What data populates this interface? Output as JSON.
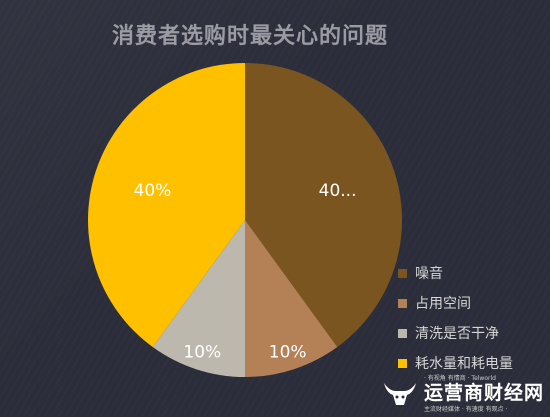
{
  "chart_data": {
    "type": "pie",
    "title": "消费者选购时最关心的问题",
    "slices": [
      {
        "label": "噪音",
        "value": 40,
        "display": "40...",
        "color": "#7a5520"
      },
      {
        "label": "占用空间",
        "value": 10,
        "display": "10%",
        "color": "#b48055"
      },
      {
        "label": "清洗是否干净",
        "value": 10,
        "display": "10%",
        "color": "#bdb8ad"
      },
      {
        "label": "耗水量和耗电量",
        "value": 40,
        "display": "40%",
        "color": "#ffc000"
      }
    ],
    "legend_position": "bottom-right"
  },
  "watermark": {
    "slogan": "· 有视角 有情商 · Telworld",
    "name": "运营商财经网",
    "sub": "主流财经媒体 · 有速度 有观点 ·"
  }
}
